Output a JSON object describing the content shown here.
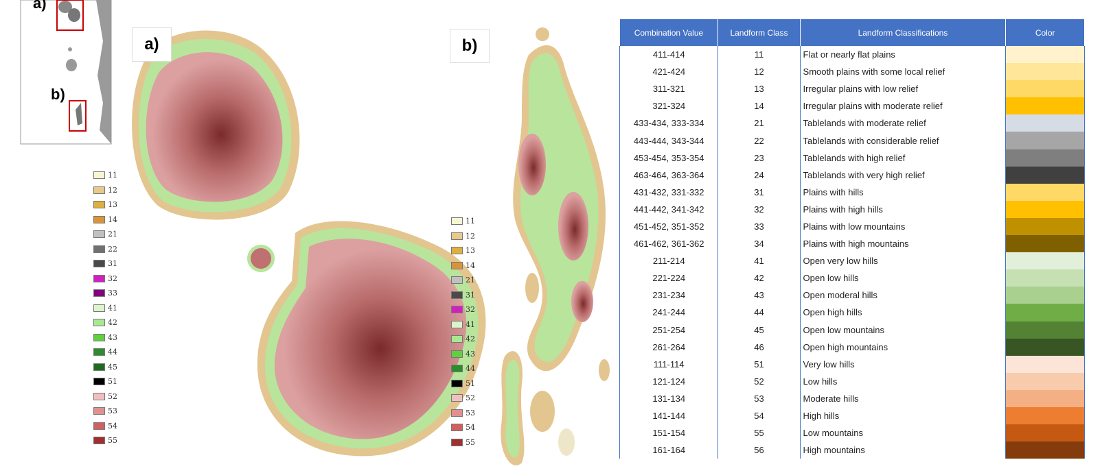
{
  "inset": {
    "label_a": "a)",
    "label_b": "b)"
  },
  "panel_a": {
    "label": "a)",
    "legend": [
      {
        "label": 11,
        "color": "#f6f6d2"
      },
      {
        "label": 12,
        "color": "#e8c98a"
      },
      {
        "label": 13,
        "color": "#ddb040"
      },
      {
        "label": 14,
        "color": "#d9943a"
      },
      {
        "label": 21,
        "color": "#c0c0c0"
      },
      {
        "label": 22,
        "color": "#707070"
      },
      {
        "label": 31,
        "color": "#4a4a4a"
      },
      {
        "label": 32,
        "color": "#d020c0"
      },
      {
        "label": 33,
        "color": "#800080"
      },
      {
        "label": 41,
        "color": "#daf5cc"
      },
      {
        "label": 42,
        "color": "#a8e890"
      },
      {
        "label": 43,
        "color": "#60d040"
      },
      {
        "label": 44,
        "color": "#2e8b2e"
      },
      {
        "label": 45,
        "color": "#1e6b1e"
      },
      {
        "label": 51,
        "color": "#000000"
      },
      {
        "label": 52,
        "color": "#f0c0c0"
      },
      {
        "label": 53,
        "color": "#e09090"
      },
      {
        "label": 54,
        "color": "#d06060"
      },
      {
        "label": 55,
        "color": "#a03030"
      }
    ]
  },
  "panel_b": {
    "label": "b)",
    "legend": [
      {
        "label": 11,
        "color": "#f6f6d2"
      },
      {
        "label": 12,
        "color": "#e8c98a"
      },
      {
        "label": 13,
        "color": "#ddb040"
      },
      {
        "label": 14,
        "color": "#d9943a"
      },
      {
        "label": 21,
        "color": "#c0c0c0"
      },
      {
        "label": 31,
        "color": "#4a4a4a"
      },
      {
        "label": 32,
        "color": "#d020c0"
      },
      {
        "label": 41,
        "color": "#daf5cc"
      },
      {
        "label": 42,
        "color": "#a8e890"
      },
      {
        "label": 43,
        "color": "#60d040"
      },
      {
        "label": 44,
        "color": "#2e8b2e"
      },
      {
        "label": 51,
        "color": "#000000"
      },
      {
        "label": 52,
        "color": "#f0c0c0"
      },
      {
        "label": 53,
        "color": "#e09090"
      },
      {
        "label": 54,
        "color": "#d06060"
      },
      {
        "label": 55,
        "color": "#a03030"
      }
    ]
  },
  "table": {
    "header": [
      "Combination Value",
      "Landform Class",
      "Landform Classifications",
      "Color"
    ],
    "rows": [
      [
        "411-414",
        11,
        "Flat or nearly flat plains",
        "#fff2cc"
      ],
      [
        "421-424",
        12,
        "Smooth plains with some local relief",
        "#ffe699"
      ],
      [
        "311-321",
        13,
        "Irregular plains with low relief",
        "#ffd966"
      ],
      [
        "321-324",
        14,
        "Irregular plains with moderate relief",
        "#ffc000"
      ],
      [
        "433-434, 333-334",
        21,
        "Tablelands with moderate relief",
        "#d6dce4"
      ],
      [
        "443-444, 343-344",
        22,
        "Tablelands with considerable relief",
        "#a6a6a6"
      ],
      [
        "453-454, 353-354",
        23,
        "Tablelands with high relief",
        "#7f7f7f"
      ],
      [
        "463-464, 363-364",
        24,
        "Tablelands with very high relief",
        "#404040"
      ],
      [
        "431-432, 331-332",
        31,
        "Plains with hills",
        "#ffd966"
      ],
      [
        "441-442, 341-342",
        32,
        "Plains with high hills",
        "#ffc000"
      ],
      [
        "451-452, 351-352",
        33,
        "Plains with low mountains",
        "#bf9000"
      ],
      [
        "461-462, 361-362",
        34,
        "Plains with high mountains",
        "#7f6000"
      ],
      [
        "211-214",
        41,
        "Open very low hills",
        "#e2efda"
      ],
      [
        "221-224",
        42,
        "Open low hills",
        "#c6e0b4"
      ],
      [
        "231-234",
        43,
        "Open moderal hills",
        "#a9d08e"
      ],
      [
        "241-244",
        44,
        "Open high hills",
        "#70ad47"
      ],
      [
        "251-254",
        45,
        "Open low mountains",
        "#548235"
      ],
      [
        "261-264",
        46,
        "Open high mountains",
        "#375623"
      ],
      [
        "111-114",
        51,
        "Very low hills",
        "#fce4d6"
      ],
      [
        "121-124",
        52,
        "Low hills",
        "#f8cbad"
      ],
      [
        "131-134",
        53,
        "Moderate hills",
        "#f4b084"
      ],
      [
        "141-144",
        54,
        "High hills",
        "#ed7d31"
      ],
      [
        "151-154",
        55,
        "Low mountains",
        "#c65911"
      ],
      [
        "161-164",
        56,
        "High mountains",
        "#843c0c"
      ]
    ]
  }
}
